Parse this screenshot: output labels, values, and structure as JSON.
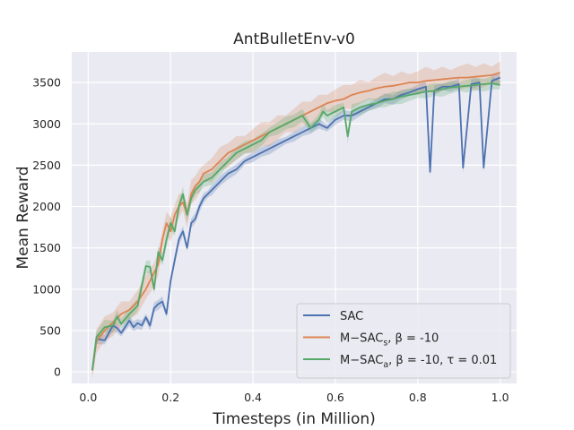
{
  "chart_data": {
    "type": "line",
    "title": "AntBulletEnv-v0",
    "xlabel": "Timesteps (in Million)",
    "ylabel": "Mean Reward",
    "xlim": [
      -0.04,
      1.04
    ],
    "ylim": [
      -140,
      3870
    ],
    "xticks": [
      0.0,
      0.2,
      0.4,
      0.6,
      0.8,
      1.0
    ],
    "xtick_labels": [
      "0.0",
      "0.2",
      "0.4",
      "0.6",
      "0.8",
      "1.0"
    ],
    "yticks": [
      0,
      500,
      1000,
      1500,
      2000,
      2500,
      3000,
      3500
    ],
    "ytick_labels": [
      "0",
      "500",
      "1000",
      "1500",
      "2000",
      "2500",
      "3000",
      "3500"
    ],
    "grid": true,
    "background": "#eaeaf2",
    "legend_position": "lower-right",
    "series": [
      {
        "name": "SAC",
        "legend_main": "SAC",
        "legend_sub": "",
        "legend_tail": "",
        "color": "#4c72b0",
        "band": 70,
        "x": [
          0.01,
          0.02,
          0.04,
          0.06,
          0.07,
          0.08,
          0.1,
          0.11,
          0.12,
          0.13,
          0.14,
          0.15,
          0.16,
          0.17,
          0.18,
          0.19,
          0.2,
          0.21,
          0.22,
          0.23,
          0.24,
          0.25,
          0.26,
          0.27,
          0.28,
          0.29,
          0.3,
          0.32,
          0.34,
          0.36,
          0.38,
          0.4,
          0.42,
          0.44,
          0.46,
          0.48,
          0.5,
          0.52,
          0.54,
          0.56,
          0.58,
          0.6,
          0.62,
          0.64,
          0.66,
          0.68,
          0.7,
          0.72,
          0.74,
          0.76,
          0.78,
          0.8,
          0.82,
          0.83,
          0.84,
          0.86,
          0.88,
          0.9,
          0.91,
          0.93,
          0.95,
          0.96,
          0.98,
          1.0
        ],
        "y": [
          20,
          400,
          380,
          560,
          530,
          470,
          620,
          540,
          590,
          560,
          660,
          560,
          770,
          820,
          850,
          700,
          1100,
          1350,
          1600,
          1700,
          1500,
          1800,
          1850,
          2000,
          2100,
          2150,
          2200,
          2300,
          2400,
          2450,
          2550,
          2600,
          2650,
          2700,
          2750,
          2800,
          2850,
          2900,
          2950,
          3000,
          2950,
          3050,
          3100,
          3100,
          3150,
          3200,
          3250,
          3300,
          3300,
          3350,
          3380,
          3420,
          3450,
          2420,
          3400,
          3450,
          3450,
          3480,
          2470,
          3480,
          3500,
          2470,
          3520,
          3560
        ]
      },
      {
        "name": "M−SACs, β = -10",
        "legend_main": "M−SAC",
        "legend_sub": "s",
        "legend_tail": ", β = -10",
        "color": "#dd8452",
        "band": 170,
        "x": [
          0.01,
          0.02,
          0.04,
          0.06,
          0.08,
          0.1,
          0.12,
          0.14,
          0.16,
          0.17,
          0.18,
          0.19,
          0.2,
          0.21,
          0.22,
          0.23,
          0.24,
          0.25,
          0.26,
          0.27,
          0.28,
          0.3,
          0.32,
          0.34,
          0.36,
          0.38,
          0.4,
          0.42,
          0.44,
          0.46,
          0.48,
          0.5,
          0.52,
          0.54,
          0.56,
          0.58,
          0.6,
          0.62,
          0.64,
          0.66,
          0.68,
          0.7,
          0.72,
          0.74,
          0.76,
          0.78,
          0.8,
          0.82,
          0.84,
          0.86,
          0.88,
          0.9,
          0.92,
          0.94,
          0.96,
          0.98,
          1.0
        ],
        "y": [
          20,
          380,
          500,
          600,
          700,
          750,
          850,
          1000,
          1200,
          1300,
          1600,
          1800,
          1700,
          1900,
          2000,
          2050,
          1900,
          2150,
          2250,
          2300,
          2400,
          2450,
          2550,
          2650,
          2700,
          2750,
          2800,
          2850,
          2900,
          2950,
          3000,
          3050,
          3100,
          3150,
          3200,
          3250,
          3280,
          3300,
          3350,
          3380,
          3400,
          3430,
          3450,
          3460,
          3480,
          3500,
          3500,
          3520,
          3530,
          3540,
          3550,
          3560,
          3560,
          3570,
          3580,
          3590,
          3620
        ]
      },
      {
        "name": "M−SACa, β = -10, τ = 0.01",
        "legend_main": "M−SAC",
        "legend_sub": "a",
        "legend_tail": ", β = -10, τ = 0.01",
        "color": "#55a868",
        "band": 90,
        "x": [
          0.01,
          0.02,
          0.04,
          0.06,
          0.07,
          0.08,
          0.1,
          0.12,
          0.14,
          0.15,
          0.16,
          0.17,
          0.18,
          0.19,
          0.2,
          0.21,
          0.22,
          0.23,
          0.24,
          0.25,
          0.26,
          0.27,
          0.28,
          0.3,
          0.32,
          0.34,
          0.36,
          0.38,
          0.4,
          0.42,
          0.44,
          0.46,
          0.48,
          0.5,
          0.52,
          0.54,
          0.56,
          0.57,
          0.58,
          0.6,
          0.62,
          0.63,
          0.64,
          0.66,
          0.68,
          0.7,
          0.72,
          0.74,
          0.76,
          0.78,
          0.8,
          0.82,
          0.84,
          0.86,
          0.88,
          0.9,
          0.92,
          0.94,
          0.96,
          0.98,
          1.0
        ],
        "y": [
          20,
          420,
          540,
          560,
          670,
          580,
          700,
          800,
          1280,
          1270,
          1000,
          1450,
          1350,
          1600,
          1800,
          1700,
          2000,
          2150,
          1900,
          2100,
          2200,
          2250,
          2300,
          2350,
          2450,
          2550,
          2650,
          2700,
          2750,
          2800,
          2900,
          2950,
          3000,
          3050,
          3100,
          2950,
          3050,
          3150,
          3100,
          3150,
          3200,
          2850,
          3150,
          3200,
          3230,
          3250,
          3280,
          3300,
          3330,
          3350,
          3370,
          3390,
          3400,
          3420,
          3440,
          3450,
          3460,
          3470,
          3480,
          3490,
          3470
        ]
      }
    ]
  }
}
